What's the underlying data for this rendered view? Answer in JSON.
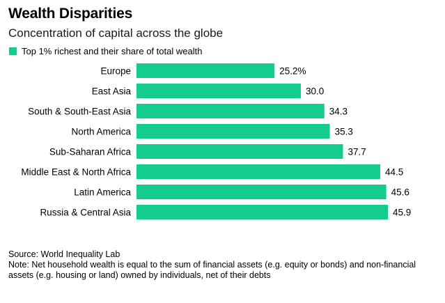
{
  "colors": {
    "bar": "#15cc8f",
    "legend": "#15cc8f"
  },
  "chart_data": {
    "type": "bar",
    "orientation": "horizontal",
    "title": "Wealth Disparities",
    "subtitle": "Concentration of capital across the globe",
    "legend": "Top 1% richest and their share of total wealth",
    "categories": [
      "Europe",
      "East Asia",
      "South & South-East Asia",
      "North America",
      "Sub-Saharan Africa",
      "Middle East & North Africa",
      "Latin America",
      "Russia & Central Asia"
    ],
    "values": [
      25.2,
      30.0,
      34.3,
      35.3,
      37.7,
      44.5,
      45.6,
      45.9
    ],
    "value_labels": [
      "25.2%",
      "30.0",
      "34.3",
      "35.3",
      "37.7",
      "44.5",
      "45.6",
      "45.9"
    ],
    "xlim": [
      0,
      45.9
    ]
  },
  "footer": {
    "source": "Source: World Inequality Lab",
    "note": "Note: Net household wealth is equal to the sum of financial assets (e.g. equity or bonds) and non-financial assets (e.g. housing or land) owned by individuals, net of their debts"
  }
}
